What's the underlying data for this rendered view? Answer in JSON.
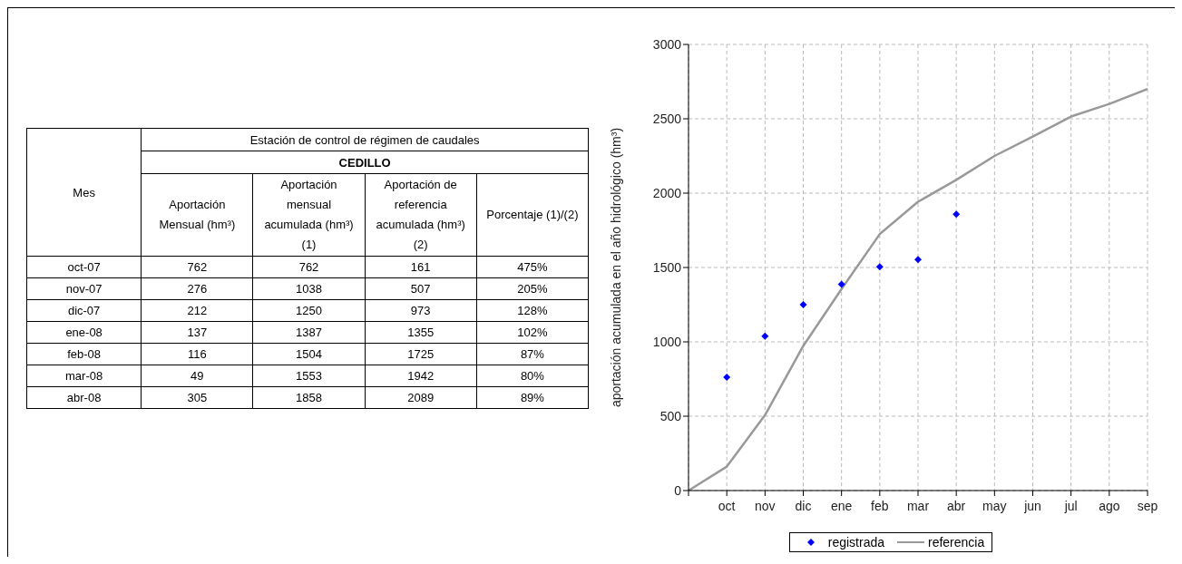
{
  "chart_data": [
    {
      "type": "other",
      "title": "Estación de control de régimen de caudales",
      "subtitle": "CEDILLO",
      "xlabel": "Mes",
      "data_labels": true,
      "categories": [
        "oct-07",
        "nov-07",
        "dic-07",
        "ene-08",
        "feb-08",
        "mar-08",
        "abr-08"
      ],
      "series": [
        {
          "name": "Aportación Mensual (hm³)",
          "values": [
            762,
            276,
            212,
            137,
            116,
            49,
            305
          ]
        },
        {
          "name": "Aportación mensual acumulada (hm³) (1)",
          "values": [
            762,
            1038,
            1250,
            1387,
            1504,
            1553,
            1858
          ]
        },
        {
          "name": "Aportación de referencia acumulada (hm³) (2)",
          "values": [
            161,
            507,
            973,
            1355,
            1725,
            1942,
            2089
          ]
        },
        {
          "name": "Porcentaje (1)/(2)",
          "values": [
            475,
            205,
            128,
            102,
            87,
            80,
            89
          ],
          "value_labels": [
            "475%",
            "205%",
            "128%",
            "102%",
            "87%",
            "80%",
            "89%"
          ]
        }
      ]
    },
    {
      "type": "line",
      "ylabel": "aportación acumulada en el año hidrológico (hm³)",
      "categories": [
        null,
        "oct",
        "nov",
        "dic",
        "ene",
        "feb",
        "mar",
        "abr",
        "may",
        "jun",
        "jul",
        "ago",
        "sep"
      ],
      "ylim": [
        0,
        3000
      ],
      "yticks": [
        0,
        500,
        1000,
        1500,
        2000,
        2500,
        3000
      ],
      "grid": true,
      "legend": "bottom",
      "series": [
        {
          "name": "registrada",
          "type": "scatter",
          "marker": "diamond",
          "color": "#0000ff",
          "values": [
            null,
            762,
            1038,
            1250,
            1387,
            1504,
            1553,
            1858,
            null,
            null,
            null,
            null,
            null
          ]
        },
        {
          "name": "referencia",
          "type": "line",
          "marker": "none",
          "color": "#999999",
          "values": [
            0,
            161,
            507,
            973,
            1355,
            1725,
            1942,
            2089,
            2250,
            2380,
            2515,
            2600,
            2700
          ]
        }
      ]
    }
  ]
}
